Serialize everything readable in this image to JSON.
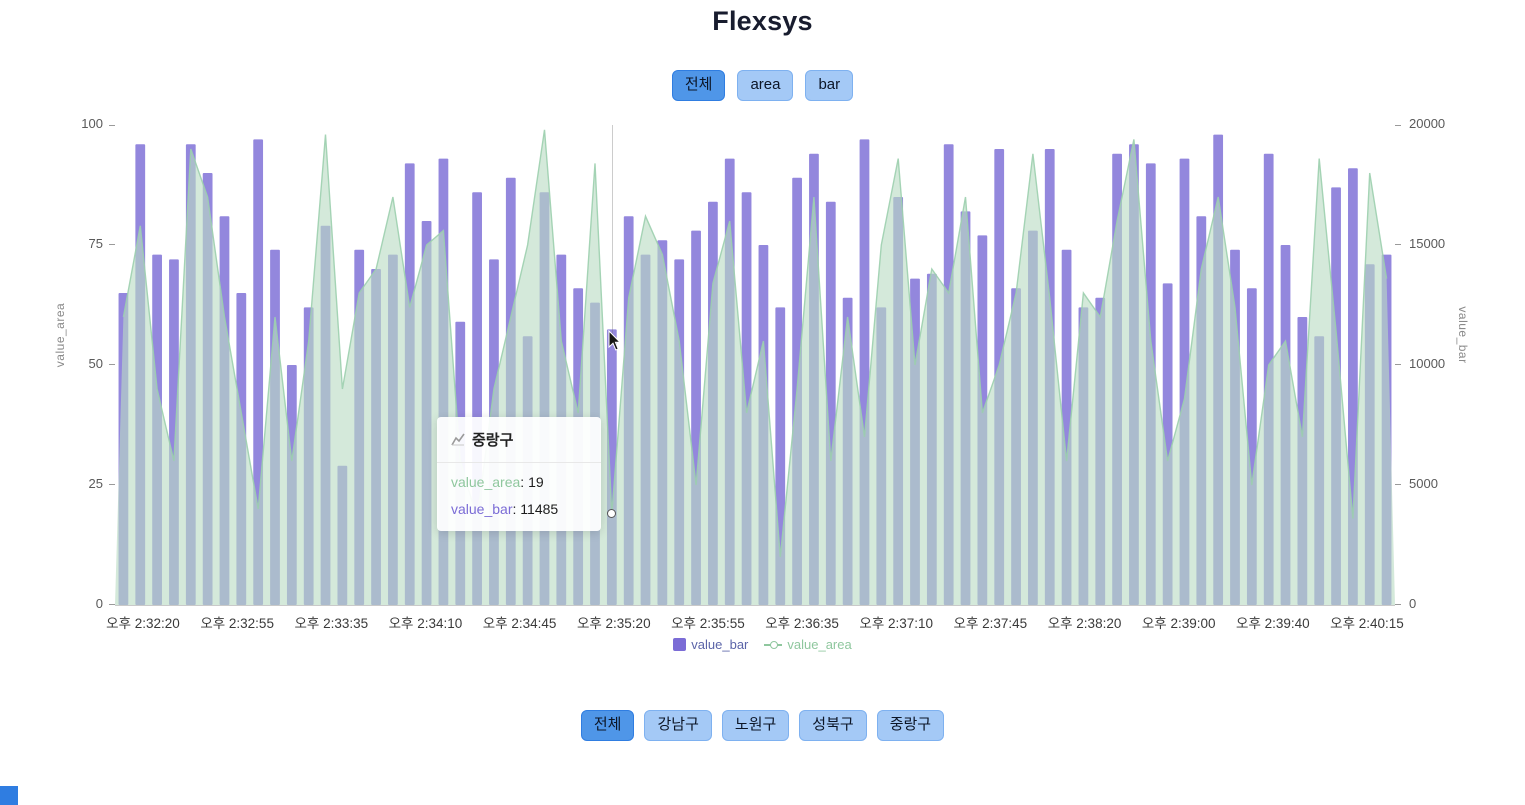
{
  "header": {
    "title": "Flexsys"
  },
  "top_buttons": [
    {
      "label": "전체",
      "active": true
    },
    {
      "label": "area",
      "active": false
    },
    {
      "label": "bar",
      "active": false
    }
  ],
  "bottom_buttons": [
    {
      "label": "전체",
      "active": true
    },
    {
      "label": "강남구",
      "active": false
    },
    {
      "label": "노원구",
      "active": false
    },
    {
      "label": "성북구",
      "active": false
    },
    {
      "label": "중랑구",
      "active": false
    }
  ],
  "colors": {
    "button_active_bg": "#4f96e8",
    "button_active_border": "#2f7de1",
    "button_bg": "#a4c9f6",
    "button_border": "#7eb1f0",
    "bar": "#7b6cd6",
    "area_fill": "#b9dcc3",
    "area_line": "#9ccfae",
    "corner_artifact": "#2f7de1"
  },
  "chart_data": {
    "type": "bar",
    "overlay": "area",
    "title": "",
    "left_axis": {
      "label": "value_area",
      "min": 0,
      "max": 100,
      "ticks": [
        "0",
        "25",
        "50",
        "75",
        "100"
      ]
    },
    "right_axis": {
      "label": "value_bar",
      "min": 0,
      "max": 20000,
      "ticks": [
        "0",
        "5000",
        "10000",
        "15000",
        "20000"
      ]
    },
    "x_tick_labels": [
      "오후 2:32:20",
      "오후 2:32:55",
      "오후 2:33:35",
      "오후 2:34:10",
      "오후 2:34:45",
      "오후 2:35:20",
      "오후 2:35:55",
      "오후 2:36:35",
      "오후 2:37:10",
      "오후 2:37:45",
      "오후 2:38:20",
      "오후 2:39:00",
      "오후 2:39:40",
      "오후 2:40:15"
    ],
    "series": [
      {
        "name": "value_bar",
        "render": "bar",
        "axis": "right",
        "color": "#7b6cd6",
        "values": [
          13000,
          19200,
          14600,
          14400,
          19200,
          18000,
          16200,
          13000,
          19400,
          14800,
          10000,
          12400,
          15800,
          5800,
          14800,
          14000,
          14600,
          18400,
          16000,
          18600,
          11800,
          17200,
          14400,
          17800,
          11200,
          17200,
          14600,
          13200,
          12600,
          11485,
          16200,
          14600,
          15200,
          14400,
          15600,
          16800,
          18600,
          17200,
          15000,
          12400,
          17800,
          18800,
          16800,
          12800,
          19400,
          12400,
          17000,
          13600,
          13800,
          19200,
          16400,
          15400,
          19000,
          13200,
          15600,
          19000,
          14800,
          12400,
          12800,
          18800,
          19200,
          18400,
          13400,
          18600,
          16200,
          19600,
          14800,
          13200,
          18800,
          15000,
          12000,
          11200,
          17400,
          18200,
          14200,
          14600
        ]
      },
      {
        "name": "value_area",
        "render": "area",
        "axis": "left",
        "color": "#9ccfae",
        "fill": "#b9dcc3",
        "values": [
          60,
          79,
          45,
          30,
          95,
          85,
          60,
          40,
          20,
          60,
          30,
          55,
          98,
          45,
          65,
          70,
          85,
          62,
          75,
          78,
          30,
          18,
          45,
          60,
          75,
          99,
          55,
          40,
          92,
          19,
          64,
          81,
          73,
          55,
          25,
          67,
          80,
          40,
          55,
          10,
          45,
          85,
          30,
          60,
          35,
          75,
          93,
          50,
          70,
          65,
          85,
          40,
          50,
          65,
          94,
          64,
          30,
          65,
          60,
          80,
          97,
          55,
          30,
          43,
          70,
          85,
          62,
          25,
          50,
          55,
          35,
          93,
          57,
          18,
          90,
          68
        ]
      }
    ],
    "legend": [
      {
        "label": "value_bar",
        "marker": "square",
        "color": "#7b6cd6",
        "text_color": "#5b64a8"
      },
      {
        "label": "value_area",
        "marker": "line-dot",
        "color": "#8fc79e",
        "text_color": "#8fc79e"
      }
    ],
    "tooltip": {
      "title": "중랑구",
      "rows": [
        {
          "label": "value_area",
          "value": "19",
          "color": "#8fc79e"
        },
        {
          "label": "value_bar",
          "value": "11485",
          "color": "#7b6cd6"
        }
      ]
    },
    "highlight_index": 29
  }
}
